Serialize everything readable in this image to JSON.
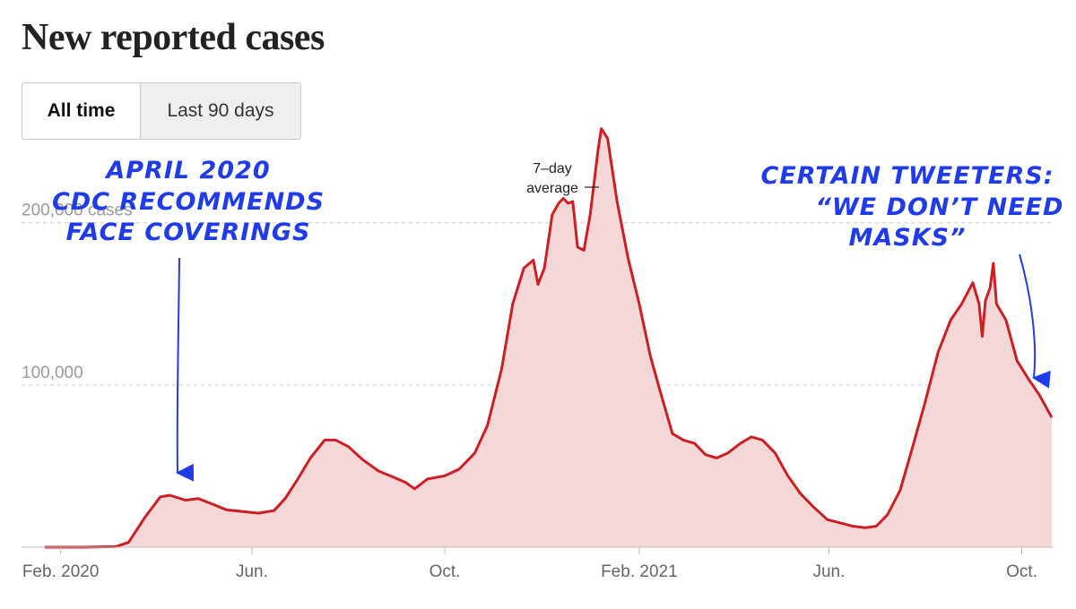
{
  "title": "New reported cases",
  "tabs": [
    {
      "label": "All time",
      "active": true
    },
    {
      "label": "Last 90 days",
      "active": false
    }
  ],
  "annotations": {
    "left": [
      "APRIL 2020",
      "CDC RECOMMENDS",
      "FACE COVERINGS"
    ],
    "right": [
      "CERTAIN TWEETERS:",
      "“WE DON’T NEED",
      "MASKS”"
    ]
  },
  "callout": [
    "7–day",
    "average"
  ],
  "colors": {
    "line": "#cc1f24",
    "fill": "#f6d7d8",
    "annotation": "#1f3ce8",
    "grid": "#cccccc"
  },
  "chart_data": {
    "type": "area",
    "x_start": "2020-01-22",
    "x_end": "2021-10-20",
    "ylim": [
      0,
      260000
    ],
    "grid": true,
    "yticks": [
      {
        "value": 100000,
        "label": "100,000"
      },
      {
        "value": 200000,
        "label": "200,000 cases"
      }
    ],
    "xticks": [
      {
        "date": "2020-02-01",
        "label": "Feb. 2020"
      },
      {
        "date": "2020-06-01",
        "label": "Jun."
      },
      {
        "date": "2020-10-01",
        "label": "Oct."
      },
      {
        "date": "2021-02-01",
        "label": "Feb. 2021"
      },
      {
        "date": "2021-06-01",
        "label": "Jun."
      },
      {
        "date": "2021-10-01",
        "label": "Oct."
      }
    ],
    "series": [
      {
        "name": "7-day average",
        "points": [
          [
            "2020-01-22",
            0
          ],
          [
            "2020-02-15",
            0
          ],
          [
            "2020-03-07",
            400
          ],
          [
            "2020-03-15",
            3000
          ],
          [
            "2020-03-25",
            18000
          ],
          [
            "2020-04-04",
            31000
          ],
          [
            "2020-04-10",
            32000
          ],
          [
            "2020-04-20",
            29000
          ],
          [
            "2020-04-28",
            30000
          ],
          [
            "2020-05-06",
            27000
          ],
          [
            "2020-05-16",
            23000
          ],
          [
            "2020-05-26",
            22000
          ],
          [
            "2020-06-05",
            21000
          ],
          [
            "2020-06-15",
            22500
          ],
          [
            "2020-06-22",
            30000
          ],
          [
            "2020-06-30",
            42000
          ],
          [
            "2020-07-08",
            55000
          ],
          [
            "2020-07-17",
            66000
          ],
          [
            "2020-07-24",
            66000
          ],
          [
            "2020-08-01",
            62000
          ],
          [
            "2020-08-10",
            54000
          ],
          [
            "2020-08-20",
            47000
          ],
          [
            "2020-08-30",
            43000
          ],
          [
            "2020-09-06",
            40000
          ],
          [
            "2020-09-12",
            36000
          ],
          [
            "2020-09-20",
            42000
          ],
          [
            "2020-10-01",
            44000
          ],
          [
            "2020-10-10",
            48000
          ],
          [
            "2020-10-20",
            58000
          ],
          [
            "2020-10-28",
            75000
          ],
          [
            "2020-11-06",
            110000
          ],
          [
            "2020-11-13",
            150000
          ],
          [
            "2020-11-20",
            172000
          ],
          [
            "2020-11-26",
            177000
          ],
          [
            "2020-11-29",
            162000
          ],
          [
            "2020-12-03",
            172000
          ],
          [
            "2020-12-08",
            205000
          ],
          [
            "2020-12-12",
            212000
          ],
          [
            "2020-12-15",
            215000
          ],
          [
            "2020-12-18",
            212000
          ],
          [
            "2020-12-21",
            213000
          ],
          [
            "2020-12-24",
            185000
          ],
          [
            "2020-12-28",
            183000
          ],
          [
            "2021-01-01",
            205000
          ],
          [
            "2021-01-06",
            245000
          ],
          [
            "2021-01-08",
            258000
          ],
          [
            "2021-01-12",
            252000
          ],
          [
            "2021-01-18",
            213000
          ],
          [
            "2021-01-25",
            178000
          ],
          [
            "2021-02-01",
            150000
          ],
          [
            "2021-02-08",
            118000
          ],
          [
            "2021-02-14",
            97000
          ],
          [
            "2021-02-22",
            70000
          ],
          [
            "2021-03-01",
            66000
          ],
          [
            "2021-03-08",
            64000
          ],
          [
            "2021-03-15",
            57000
          ],
          [
            "2021-03-22",
            55000
          ],
          [
            "2021-03-29",
            58000
          ],
          [
            "2021-04-06",
            64000
          ],
          [
            "2021-04-13",
            68000
          ],
          [
            "2021-04-20",
            66000
          ],
          [
            "2021-04-28",
            58000
          ],
          [
            "2021-05-06",
            44000
          ],
          [
            "2021-05-14",
            33000
          ],
          [
            "2021-05-22",
            25000
          ],
          [
            "2021-05-31",
            17000
          ],
          [
            "2021-06-08",
            15000
          ],
          [
            "2021-06-16",
            13000
          ],
          [
            "2021-06-24",
            12000
          ],
          [
            "2021-07-01",
            13000
          ],
          [
            "2021-07-08",
            20000
          ],
          [
            "2021-07-16",
            35000
          ],
          [
            "2021-07-24",
            62000
          ],
          [
            "2021-08-01",
            90000
          ],
          [
            "2021-08-09",
            120000
          ],
          [
            "2021-08-17",
            140000
          ],
          [
            "2021-08-24",
            150000
          ],
          [
            "2021-08-31",
            163000
          ],
          [
            "2021-09-04",
            150000
          ],
          [
            "2021-09-06",
            130000
          ],
          [
            "2021-09-08",
            152000
          ],
          [
            "2021-09-11",
            160000
          ],
          [
            "2021-09-13",
            175000
          ],
          [
            "2021-09-15",
            150000
          ],
          [
            "2021-09-21",
            140000
          ],
          [
            "2021-09-28",
            115000
          ],
          [
            "2021-10-05",
            104000
          ],
          [
            "2021-10-12",
            94000
          ],
          [
            "2021-10-20",
            80000
          ]
        ]
      }
    ]
  }
}
